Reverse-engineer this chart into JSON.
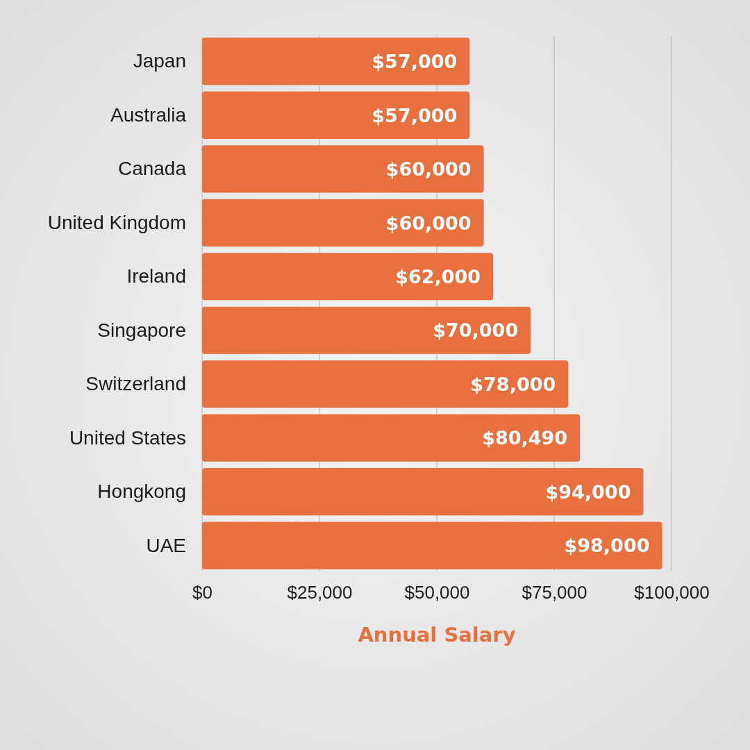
{
  "chart_data": {
    "type": "bar",
    "orientation": "horizontal",
    "categories": [
      "Japan",
      "Australia",
      "Canada",
      "United Kingdom",
      "Ireland",
      "Singapore",
      "Switzerland",
      "United States",
      "Hongkong",
      "UAE"
    ],
    "values": [
      57000,
      57000,
      60000,
      60000,
      62000,
      70000,
      78000,
      80490,
      94000,
      98000
    ],
    "value_labels": [
      "$57,000",
      "$57,000",
      "$60,000",
      "$60,000",
      "$62,000",
      "$70,000",
      "$78,000",
      "$80,490",
      "$94,000",
      "$98,000"
    ],
    "color": "#e8703f",
    "xlim": [
      0,
      100000
    ],
    "xticks": [
      {
        "value": 0,
        "label": "$0"
      },
      {
        "value": 25000,
        "label": "$25,000"
      },
      {
        "value": 50000,
        "label": "$50,000"
      },
      {
        "value": 75000,
        "label": "$75,000"
      },
      {
        "value": 100000,
        "label": "$100,000"
      }
    ],
    "xlabel": "Annual Salary",
    "grid": "x"
  }
}
